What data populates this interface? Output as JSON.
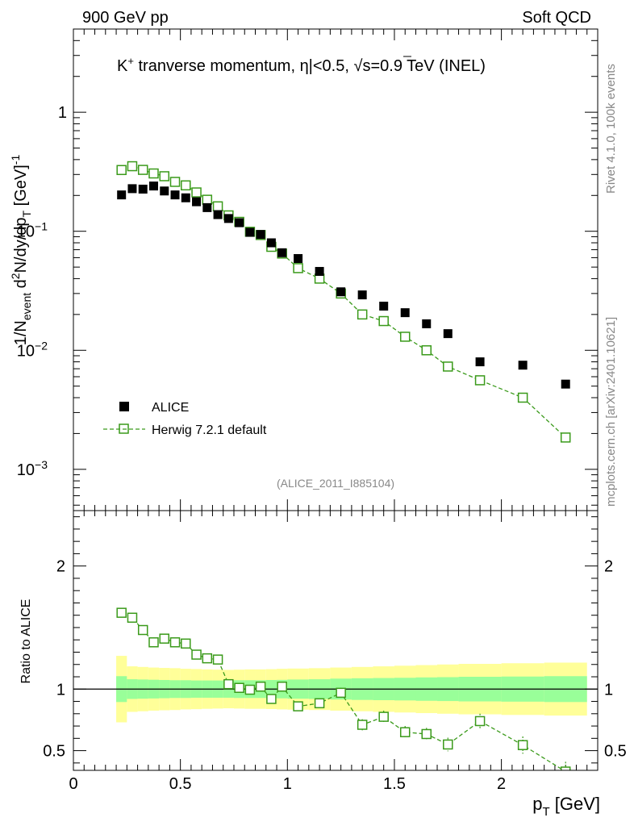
{
  "header": {
    "left": "900 GeV pp",
    "right": "Soft QCD"
  },
  "main_title": {
    "prefix": "K",
    "sup": "+",
    "rest": " tranverse momentum, ",
    "eta": "η|<0.5, ",
    "sqrt": "√",
    "s_expr": "s=0.9 TeV (INEL)"
  },
  "side_labels": {
    "rivet": "Rivet 4.1.0,  100k events",
    "mcplots": "mcplots.cern.ch [arXiv:2401.10621]"
  },
  "analysis_id": "(ALICE_2011_I885104)",
  "y_label_top": {
    "a": "1/N",
    "a_sub": "event",
    "b": " d",
    "b_sup": "2",
    "c": "N/dy/dp",
    "c_sub": "T",
    "d": " [GeV]",
    "d_sup": "-1"
  },
  "y_label_bottom": "Ratio to ALICE",
  "x_label": {
    "main": "p",
    "sub": "T",
    "unit": " [GeV]"
  },
  "legend": {
    "data_label": "ALICE",
    "mc_label": "Herwig 7.2.1 default"
  },
  "colors": {
    "data": "#000000",
    "mc": "#3a9a1a",
    "band_inner": "#99ff99",
    "band_outer": "#ffff99"
  },
  "chart_data": [
    {
      "type": "scatter",
      "panel": "main",
      "yscale": "log",
      "xlim": [
        0,
        2.45
      ],
      "ylim": [
        0.00045,
        5
      ],
      "y_ticks": [
        {
          "value": 1,
          "label": "1",
          "exp": ""
        },
        {
          "value": 0.1,
          "label": "10",
          "exp": "−1"
        },
        {
          "value": 0.01,
          "label": "10",
          "exp": "−2"
        },
        {
          "value": 0.001,
          "label": "10",
          "exp": "−3"
        }
      ],
      "series": [
        {
          "name": "ALICE",
          "style": "filled-square",
          "x": [
            0.225,
            0.275,
            0.325,
            0.375,
            0.425,
            0.475,
            0.525,
            0.575,
            0.625,
            0.675,
            0.725,
            0.775,
            0.825,
            0.875,
            0.925,
            0.975,
            1.05,
            1.15,
            1.25,
            1.35,
            1.45,
            1.55,
            1.65,
            1.75,
            1.9,
            2.1,
            2.3
          ],
          "y": [
            0.202,
            0.228,
            0.226,
            0.24,
            0.218,
            0.202,
            0.191,
            0.177,
            0.158,
            0.138,
            0.128,
            0.118,
            0.098,
            0.094,
            0.08,
            0.066,
            0.059,
            0.046,
            0.031,
            0.0292,
            0.0235,
            0.0207,
            0.0167,
            0.0138,
            0.008,
            0.0075,
            0.0052
          ]
        },
        {
          "name": "Herwig 7.2.1 default",
          "style": "open-square-dashed",
          "x": [
            0.225,
            0.275,
            0.325,
            0.375,
            0.425,
            0.475,
            0.525,
            0.575,
            0.625,
            0.675,
            0.725,
            0.775,
            0.825,
            0.875,
            0.925,
            0.975,
            1.05,
            1.15,
            1.25,
            1.35,
            1.45,
            1.55,
            1.65,
            1.75,
            1.9,
            2.1,
            2.3
          ],
          "y": [
            0.327,
            0.352,
            0.328,
            0.306,
            0.29,
            0.26,
            0.243,
            0.212,
            0.184,
            0.162,
            0.136,
            0.12,
            0.099,
            0.093,
            0.074,
            0.065,
            0.049,
            0.04,
            0.03,
            0.02,
            0.0176,
            0.013,
            0.01,
            0.0073,
            0.0056,
            0.004,
            0.00185
          ]
        }
      ]
    },
    {
      "type": "scatter",
      "panel": "ratio",
      "xlim": [
        0,
        2.45
      ],
      "ylim": [
        0.34,
        2.45
      ],
      "x_ticks": [
        {
          "value": 0,
          "label": "0"
        },
        {
          "value": 0.5,
          "label": "0.5"
        },
        {
          "value": 1,
          "label": "1"
        },
        {
          "value": 1.5,
          "label": "1.5"
        },
        {
          "value": 2,
          "label": "2"
        }
      ],
      "y_ticks": [
        {
          "value": 2,
          "label": "2"
        },
        {
          "value": 1,
          "label": "1"
        },
        {
          "value": 0.5,
          "label": "0.5"
        }
      ],
      "bands": {
        "x_edges": [
          0.2,
          0.25,
          0.3,
          0.35,
          0.4,
          0.45,
          0.5,
          0.55,
          0.6,
          0.65,
          0.7,
          0.75,
          0.8,
          0.85,
          0.9,
          0.95,
          1.0,
          1.1,
          1.2,
          1.3,
          1.4,
          1.5,
          1.6,
          1.7,
          1.8,
          2.0,
          2.2,
          2.4
        ],
        "inner_half": [
          0.105,
          0.08,
          0.078,
          0.076,
          0.074,
          0.072,
          0.072,
          0.07,
          0.07,
          0.07,
          0.07,
          0.072,
          0.072,
          0.072,
          0.074,
          0.075,
          0.078,
          0.08,
          0.085,
          0.088,
          0.09,
          0.092,
          0.095,
          0.097,
          0.1,
          0.102,
          0.105
        ],
        "outer_half": [
          0.27,
          0.185,
          0.18,
          0.175,
          0.172,
          0.17,
          0.165,
          0.163,
          0.16,
          0.158,
          0.156,
          0.158,
          0.16,
          0.16,
          0.162,
          0.165,
          0.167,
          0.17,
          0.175,
          0.18,
          0.185,
          0.19,
          0.195,
          0.2,
          0.205,
          0.21,
          0.215
        ]
      },
      "series": [
        {
          "name": "Herwig 7.2.1 default / ALICE",
          "x": [
            0.225,
            0.275,
            0.325,
            0.375,
            0.425,
            0.475,
            0.525,
            0.575,
            0.625,
            0.675,
            0.725,
            0.775,
            0.825,
            0.875,
            0.925,
            0.975,
            1.05,
            1.15,
            1.25,
            1.35,
            1.45,
            1.55,
            1.65,
            1.75,
            1.9,
            2.1,
            2.3
          ],
          "y": [
            1.62,
            1.58,
            1.48,
            1.38,
            1.41,
            1.38,
            1.37,
            1.28,
            1.25,
            1.24,
            1.04,
            1.01,
            0.995,
            1.02,
            0.92,
            1.02,
            0.86,
            0.885,
            0.97,
            0.71,
            0.775,
            0.65,
            0.635,
            0.55,
            0.74,
            0.545,
            0.33
          ],
          "err": [
            0.02,
            0.02,
            0.02,
            0.02,
            0.02,
            0.02,
            0.02,
            0.02,
            0.02,
            0.02,
            0.025,
            0.025,
            0.025,
            0.03,
            0.03,
            0.035,
            0.025,
            0.03,
            0.04,
            0.045,
            0.05,
            0.05,
            0.05,
            0.055,
            0.06,
            0.07,
            0.08
          ]
        }
      ]
    }
  ]
}
